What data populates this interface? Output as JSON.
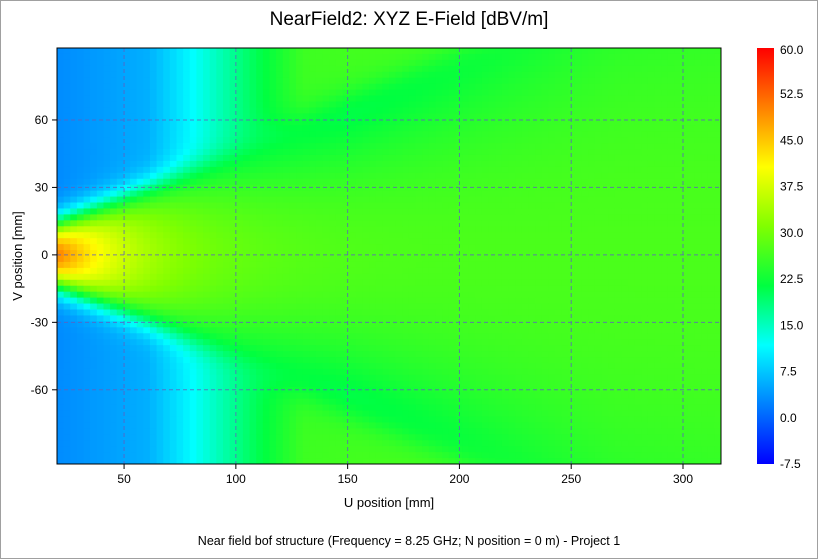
{
  "window": {
    "background": "#ffffff"
  },
  "chart_data": {
    "type": "heatmap",
    "title": "NearField2: XYZ E-Field [dBV/m]",
    "xlabel": "U position [mm]",
    "ylabel": "V position [mm]",
    "footer": "Near field bof structure (Frequency = 8.25 GHz; N position = 0 m) - Project 1",
    "xlim": [
      20,
      317
    ],
    "ylim": [
      -93,
      92
    ],
    "x_ticks": [
      "50",
      "100",
      "150",
      "200",
      "250",
      "300"
    ],
    "x_tick_values": [
      50,
      100,
      150,
      200,
      250,
      300
    ],
    "y_ticks": [
      "60",
      "30",
      "0",
      "-30",
      "-60"
    ],
    "y_tick_values": [
      60,
      30,
      0,
      -30,
      -60
    ],
    "grid": true,
    "colorbar": {
      "min": -7.5,
      "max": 60.0,
      "labels": [
        "60.0",
        "52.5",
        "45.0",
        "37.5",
        "30.0",
        "22.5",
        "15.0",
        "7.5",
        "0.0",
        "-7.5"
      ],
      "label_values": [
        60,
        52.5,
        45,
        37.5,
        30,
        22.5,
        15,
        7.5,
        0,
        -7.5
      ],
      "colormap": [
        "#0000ff",
        "#0080ff",
        "#00ffff",
        "#00ff40",
        "#80ff00",
        "#ffff00",
        "#ff8000",
        "#ff0000"
      ]
    },
    "field_description": {
      "peak_value_dBV_m": 52,
      "peak_location_mm": [
        20,
        0
      ],
      "far_field_value_dBV_m": 27,
      "low_value_dBV_m": 0
    }
  }
}
